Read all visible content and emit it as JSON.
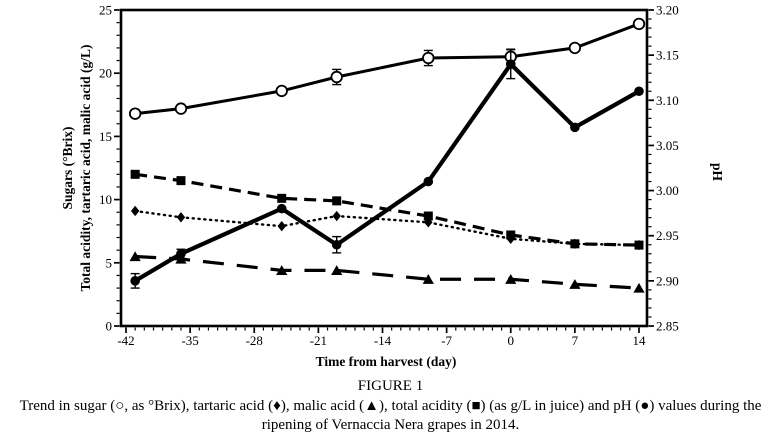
{
  "figure": {
    "title": "FIGURE 1",
    "caption": "Trend in sugar (○, as °Brix), tartaric acid (♦), malic acid (▲), total acidity (■) (as g/L in juice) and pH (●) values during the ripening of Vernaccia Nera grapes in 2014."
  },
  "chart_data": {
    "type": "line",
    "xlabel": "Time from harvest (day)",
    "ylabel_left_line1": "Sugars (°Brix)",
    "ylabel_left_line2": "Total acidity, tartaric acid, malic acid (g/L)",
    "ylabel_right": "pH",
    "xlim": [
      -42,
      14
    ],
    "xticks": [
      -42,
      -35,
      -28,
      -21,
      -14,
      -7,
      0,
      7,
      14
    ],
    "x_minor_step": 1,
    "ylim_left": [
      0,
      25
    ],
    "yticks_left": [
      0,
      5,
      10,
      15,
      20,
      25
    ],
    "y_left_minor_step": 1,
    "ylim_right": [
      2.85,
      3.2
    ],
    "yticks_right": [
      2.85,
      2.9,
      2.95,
      3.0,
      3.05,
      3.1,
      3.15,
      3.2
    ],
    "y_right_minor_step": 0.01,
    "grid": false,
    "legend": "none (symbols explained in caption)",
    "x": [
      -41,
      -36,
      -25,
      -19,
      -9,
      0,
      7,
      14
    ],
    "series": [
      {
        "name": "total acidity",
        "marker": "square",
        "axis": "left",
        "line": "dashed",
        "values": [
          12.0,
          11.5,
          10.1,
          9.9,
          8.7,
          7.2,
          6.5,
          6.4
        ]
      },
      {
        "name": "tartaric acid",
        "marker": "diamond",
        "axis": "left",
        "line": "dotted",
        "values": [
          9.1,
          8.6,
          7.9,
          8.7,
          8.2,
          6.9,
          6.5,
          6.4
        ]
      },
      {
        "name": "malic acid",
        "marker": "triangle",
        "axis": "left",
        "line": "long-dash",
        "values": [
          5.5,
          5.3,
          4.4,
          4.4,
          3.7,
          3.7,
          3.3,
          3.0
        ]
      },
      {
        "name": "sugar",
        "marker": "open-circle",
        "axis": "left",
        "line": "solid",
        "values": [
          16.8,
          17.2,
          18.6,
          19.7,
          21.2,
          21.3,
          22.0,
          23.9
        ],
        "err": [
          0,
          0,
          0,
          0.6,
          0.6,
          0.6,
          0,
          0
        ]
      },
      {
        "name": "pH",
        "marker": "filled-circle",
        "axis": "right",
        "line": "solid-thick",
        "values": [
          2.9,
          2.93,
          2.98,
          2.94,
          3.01,
          3.14,
          3.07,
          3.11
        ],
        "err": [
          0.008,
          0.005,
          0,
          0.009,
          0,
          0.016,
          0,
          0
        ]
      }
    ],
    "colors": {
      "line": "#000000",
      "background": "#ffffff",
      "marker_fill": "#000000",
      "open_marker_fill": "#ffffff"
    }
  }
}
